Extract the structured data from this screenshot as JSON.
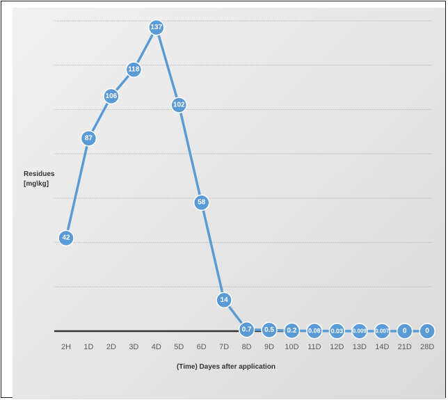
{
  "chart_data": {
    "type": "line",
    "title": "",
    "xlabel": "(Time) Dayes after application",
    "ylabel": [
      "Residues",
      "[mg\\kg]"
    ],
    "categories": [
      "2H",
      "1D",
      "2D",
      "3D",
      "4D",
      "5D",
      "6D",
      "7D",
      "8D",
      "9D",
      "10D",
      "11D",
      "12D",
      "13D",
      "14D",
      "21D",
      "28D"
    ],
    "series": [
      {
        "values": [
          42,
          87,
          106,
          118,
          137,
          102,
          58,
          14,
          0.7,
          0.5,
          0.2,
          0.08,
          0.03,
          0.009,
          0.007,
          0,
          0
        ],
        "labels": [
          "42",
          "87",
          "106",
          "118",
          "137",
          "102",
          "58",
          "14",
          "0.7",
          "0.5",
          "0.2",
          "0.08",
          "0.03",
          "0.009",
          "0.007",
          "0",
          "0"
        ],
        "color": "#5b9bd5"
      }
    ],
    "ylim": [
      0,
      140
    ],
    "grid": true,
    "legend": "none"
  }
}
